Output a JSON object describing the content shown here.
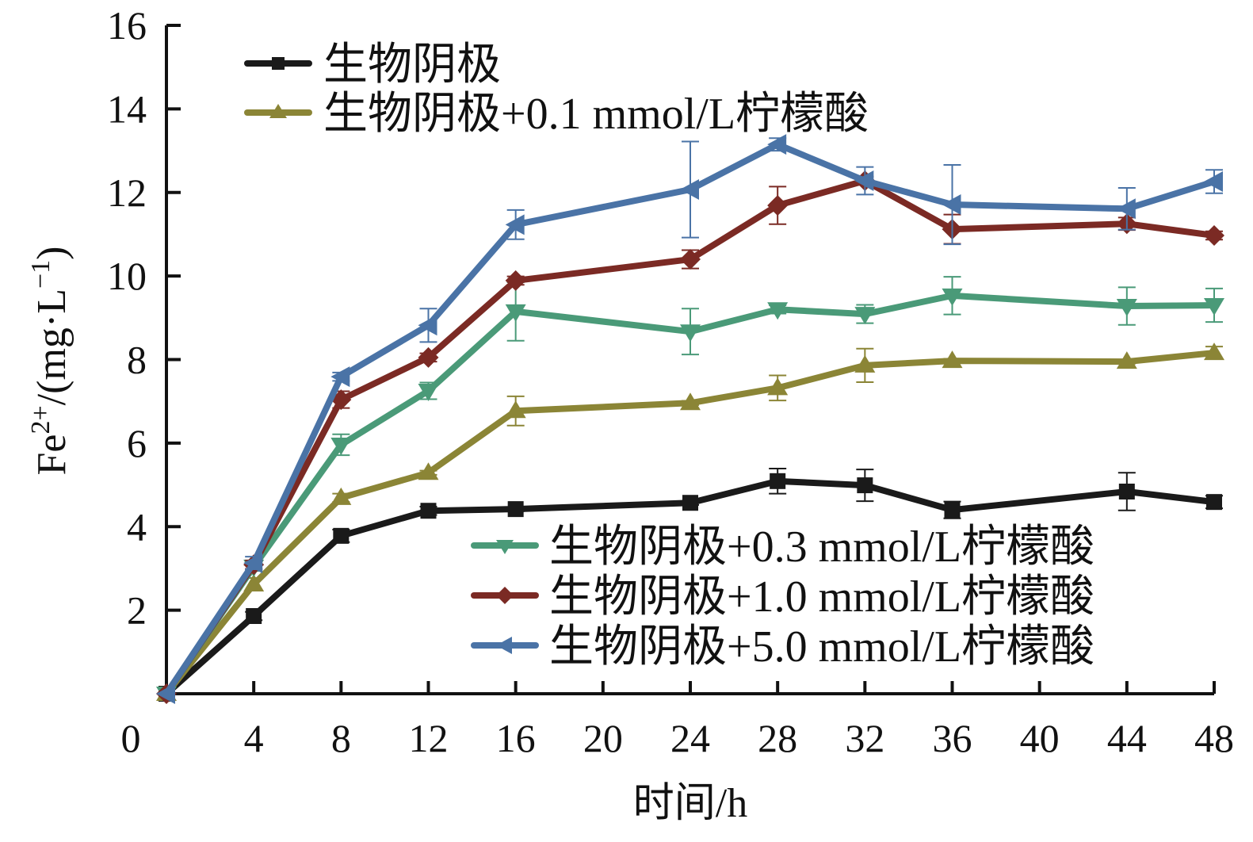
{
  "chart_data": {
    "type": "line",
    "title": "",
    "xlabel": "时间/h",
    "ylabel": {
      "base": "Fe",
      "sup": "2+",
      "mid": "/(mg·L",
      "sup2": "−1",
      "end": ")"
    },
    "xlim": [
      0,
      48
    ],
    "ylim": [
      0,
      16
    ],
    "x_ticks": [
      4,
      8,
      12,
      16,
      20,
      24,
      28,
      32,
      36,
      40,
      44,
      48
    ],
    "y_ticks": [
      2,
      4,
      6,
      8,
      10,
      12,
      14,
      16
    ],
    "origin_label": "0",
    "grid": false,
    "x": [
      0,
      4,
      8,
      12,
      16,
      24,
      28,
      32,
      36,
      44,
      48
    ],
    "series": [
      {
        "name": "生物阴极",
        "color": "#1a1a1a",
        "marker": "square",
        "legend_group": "top-left",
        "values": [
          0,
          1.86,
          3.78,
          4.38,
          4.42,
          4.57,
          5.09,
          4.99,
          4.4,
          4.84,
          4.59
        ],
        "errors": [
          0,
          0.1,
          0.15,
          0.1,
          0.05,
          0.05,
          0.3,
          0.38,
          0.2,
          0.45,
          0.15
        ]
      },
      {
        "name": "生物阴极+0.1 mmol/L柠檬酸",
        "color": "#8b8536",
        "marker": "triangle-up",
        "legend_group": "top-left",
        "values": [
          0,
          2.62,
          4.69,
          5.29,
          6.77,
          6.96,
          7.32,
          7.86,
          7.97,
          7.95,
          8.16
        ],
        "errors": [
          0,
          0.15,
          0.1,
          0.05,
          0.35,
          0.05,
          0.3,
          0.4,
          0.05,
          0.05,
          0.15
        ]
      },
      {
        "name": "生物阴极+0.3 mmol/L柠檬酸",
        "color": "#4a9a78",
        "marker": "triangle-down",
        "legend_group": "bottom-right",
        "values": [
          0,
          3.04,
          5.96,
          7.25,
          9.15,
          8.67,
          9.2,
          9.09,
          9.53,
          9.28,
          9.3
        ],
        "errors": [
          0,
          0.1,
          0.25,
          0.2,
          0.7,
          0.55,
          0.1,
          0.22,
          0.45,
          0.45,
          0.4
        ]
      },
      {
        "name": "生物阴极+1.0 mmol/L柠檬酸",
        "color": "#7b2a24",
        "marker": "diamond",
        "legend_group": "bottom-right",
        "values": [
          0,
          3.09,
          7.04,
          8.05,
          9.89,
          10.4,
          11.69,
          12.28,
          11.12,
          11.25,
          10.97
        ],
        "errors": [
          0,
          0.1,
          0.2,
          0.1,
          0.1,
          0.22,
          0.45,
          0.1,
          0.35,
          0.15,
          0.1
        ]
      },
      {
        "name": "生物阴极+5.0 mmol/L柠檬酸",
        "color": "#4a73a6",
        "marker": "triangle-left",
        "legend_group": "bottom-right",
        "values": [
          0,
          3.13,
          7.59,
          8.82,
          11.23,
          12.07,
          13.15,
          12.28,
          11.71,
          11.61,
          12.26
        ],
        "errors": [
          0,
          0.15,
          0.1,
          0.4,
          0.35,
          1.15,
          0.15,
          0.33,
          0.95,
          0.5,
          0.28
        ]
      }
    ],
    "legend": "top-left (2 entries) and bottom-right (3 entries)"
  }
}
